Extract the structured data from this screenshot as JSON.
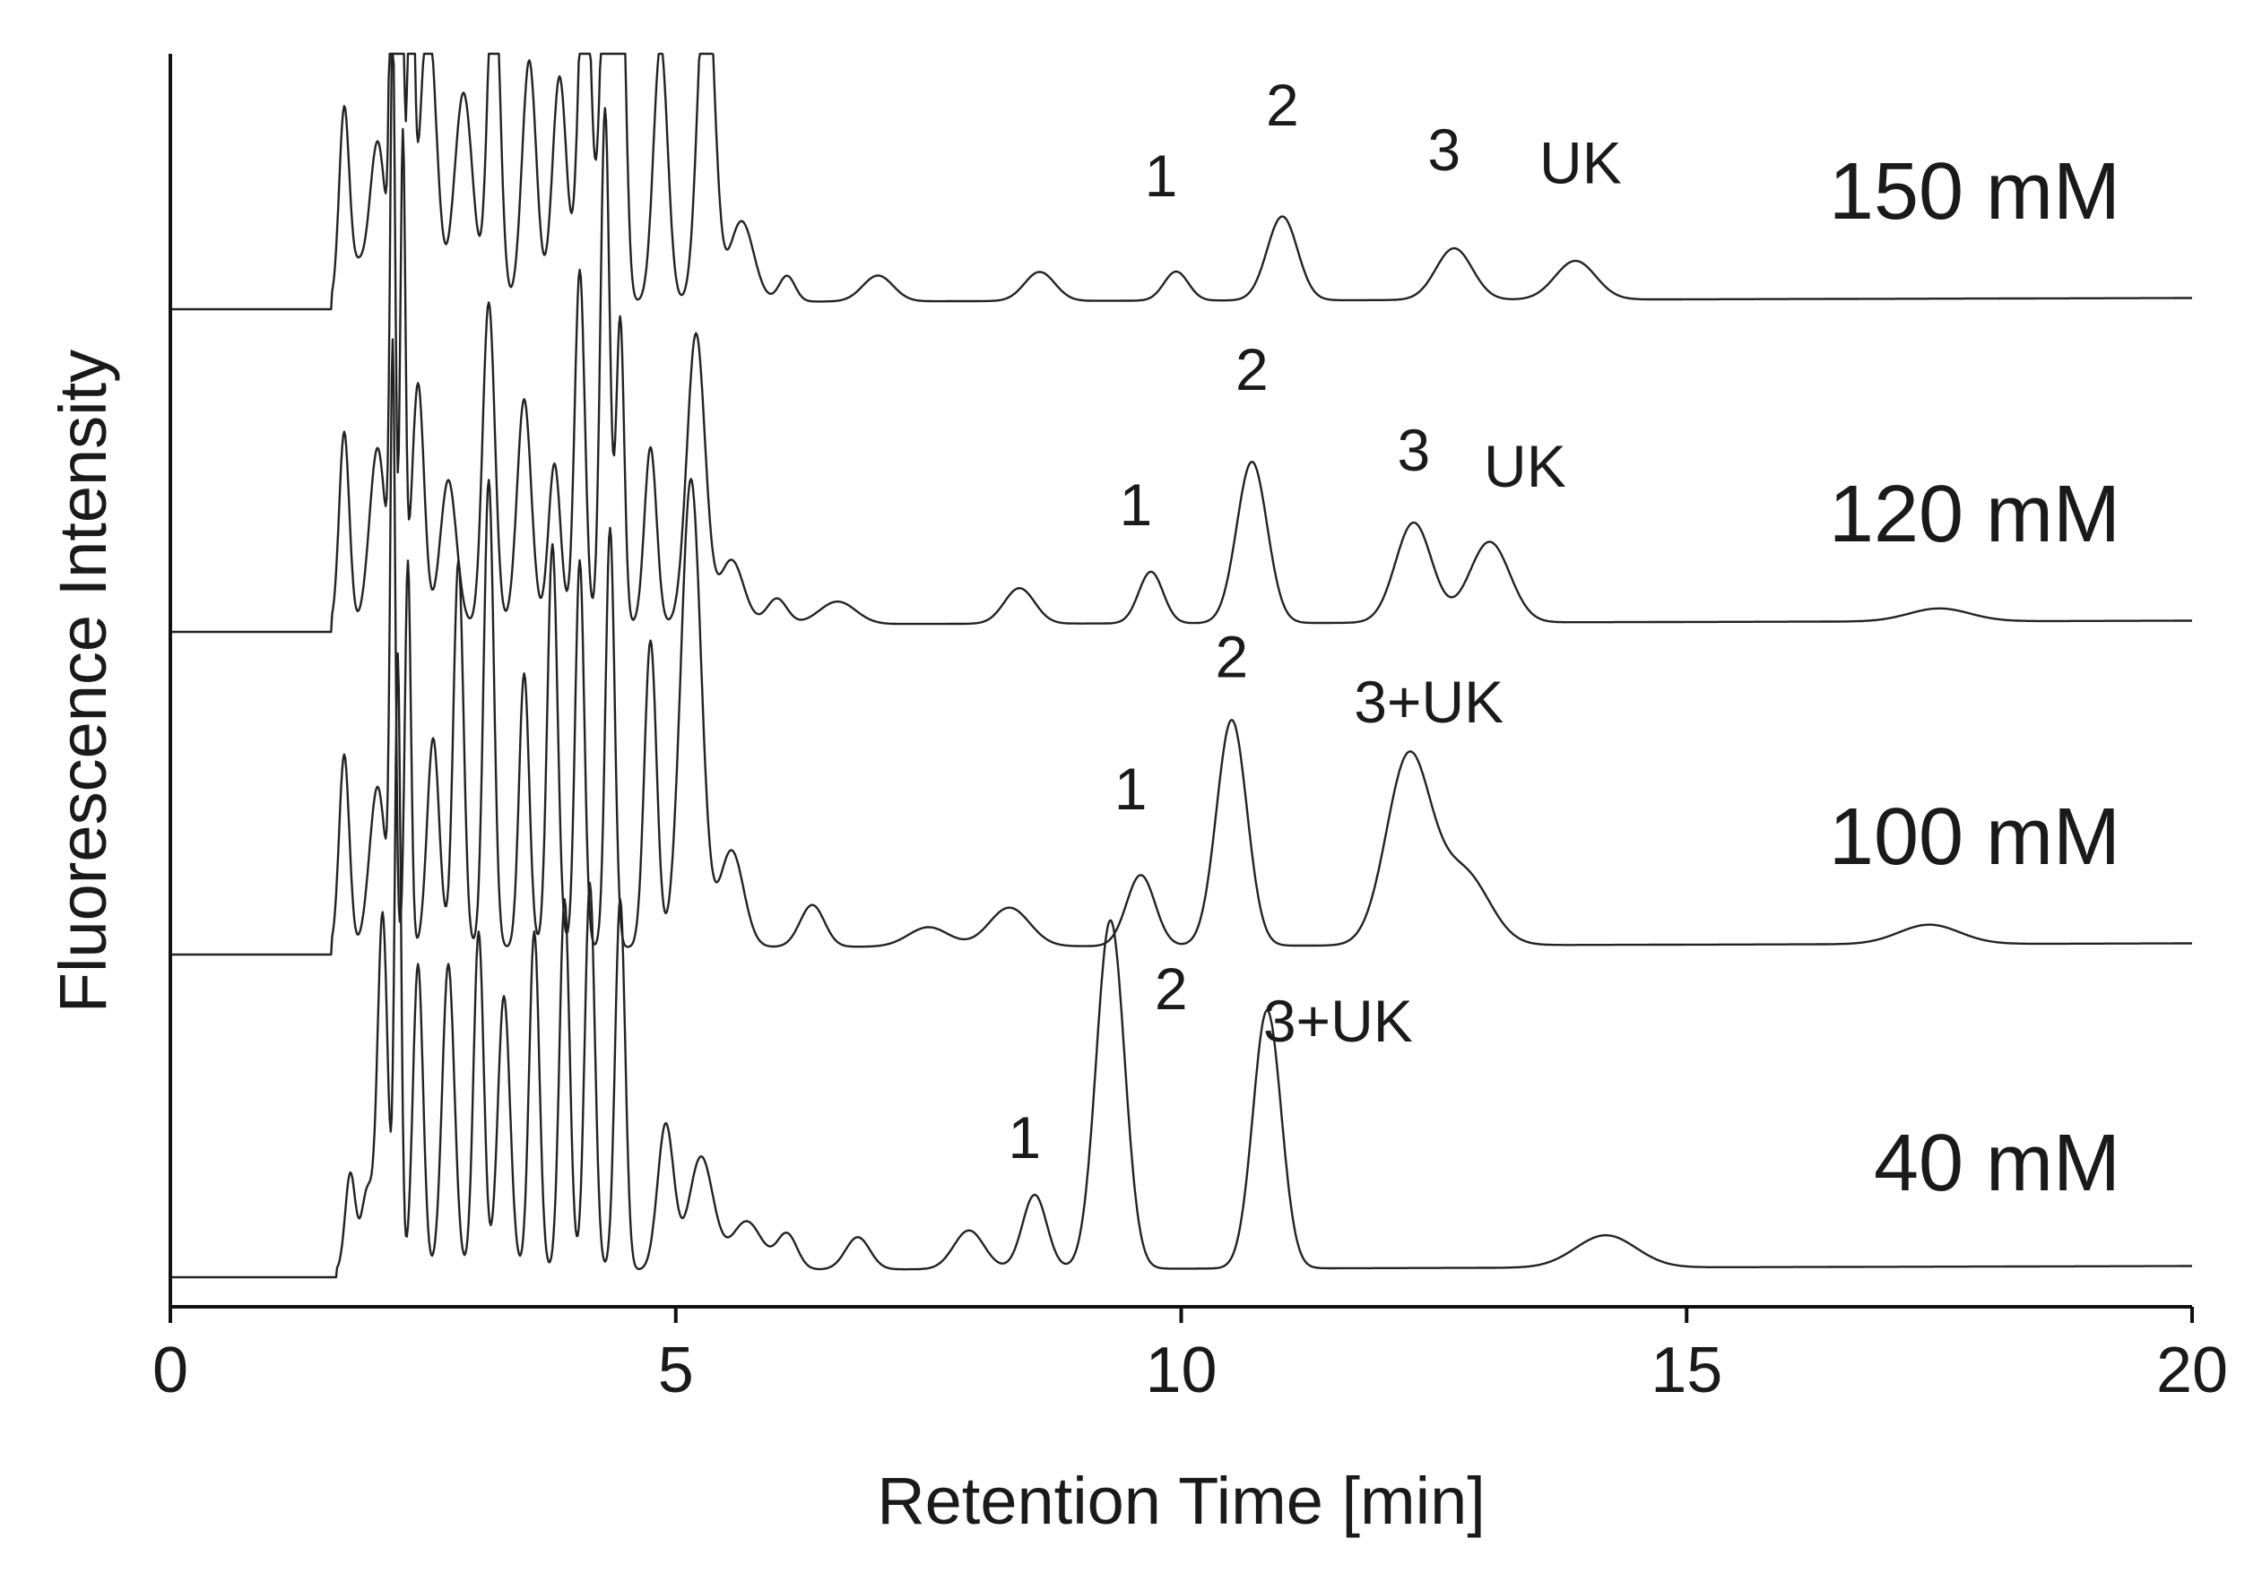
{
  "chart_data": {
    "type": "line",
    "xlabel": "Retention Time [min]",
    "ylabel": "Fluorescence Intensity",
    "xlim": [
      0,
      20
    ],
    "xticks": [
      0,
      5,
      10,
      15,
      20
    ],
    "xtick_labels": [
      "0",
      "5",
      "10",
      "15",
      "20"
    ],
    "grid": false,
    "series": [
      {
        "name": "150 mM",
        "baseline": 1.0,
        "x_start": 1.6,
        "noise_amp": 0.0,
        "drift": 0.004,
        "peaks": [
          {
            "t": 1.72,
            "h": 0.6,
            "w": 0.05
          },
          {
            "t": 1.85,
            "h": 0.1,
            "w": 0.06
          },
          {
            "t": 2.05,
            "h": 0.5,
            "w": 0.08
          },
          {
            "t": 2.2,
            "h": 1.8,
            "w": 0.025
          },
          {
            "t": 2.28,
            "h": 1.6,
            "w": 0.025
          },
          {
            "t": 2.38,
            "h": 1.3,
            "w": 0.03
          },
          {
            "t": 2.55,
            "h": 0.9,
            "w": 0.08
          },
          {
            "t": 2.9,
            "h": 0.65,
            "w": 0.09
          },
          {
            "t": 3.2,
            "h": 1.1,
            "w": 0.06
          },
          {
            "t": 3.55,
            "h": 0.75,
            "w": 0.07
          },
          {
            "t": 3.85,
            "h": 0.7,
            "w": 0.07
          },
          {
            "t": 4.1,
            "h": 1.2,
            "w": 0.06
          },
          {
            "t": 4.3,
            "h": 1.1,
            "w": 0.05
          },
          {
            "t": 4.45,
            "h": 1.3,
            "w": 0.05
          },
          {
            "t": 4.85,
            "h": 0.8,
            "w": 0.07
          },
          {
            "t": 5.3,
            "h": 1.1,
            "w": 0.08
          },
          {
            "t": 5.65,
            "h": 0.25,
            "w": 0.12
          },
          {
            "t": 6.1,
            "h": 0.08,
            "w": 0.08
          },
          {
            "t": 7.0,
            "h": 0.08,
            "w": 0.15
          },
          {
            "t": 8.6,
            "h": 0.09,
            "w": 0.15
          },
          {
            "t": 9.95,
            "h": 0.09,
            "w": 0.12
          },
          {
            "t": 11.0,
            "h": 0.26,
            "w": 0.15
          },
          {
            "t": 12.7,
            "h": 0.16,
            "w": 0.18
          },
          {
            "t": 13.9,
            "h": 0.12,
            "w": 0.2
          }
        ],
        "peak_labels": [
          {
            "text": "1",
            "t": 9.8,
            "y": 1.35
          },
          {
            "text": "2",
            "t": 11.0,
            "y": 1.57
          },
          {
            "text": "3",
            "t": 12.6,
            "y": 1.43
          },
          {
            "text": "UK",
            "t": 13.95,
            "y": 1.39
          }
        ],
        "label_y": 1.28
      },
      {
        "name": "120 mM",
        "baseline": 0.0,
        "x_start": 1.6,
        "noise_amp": 0.0,
        "drift": 0.004,
        "peaks": [
          {
            "t": 1.72,
            "h": 0.6,
            "w": 0.05
          },
          {
            "t": 2.05,
            "h": 0.55,
            "w": 0.08
          },
          {
            "t": 2.2,
            "h": 1.8,
            "w": 0.025
          },
          {
            "t": 2.3,
            "h": 1.5,
            "w": 0.025
          },
          {
            "t": 2.45,
            "h": 0.75,
            "w": 0.06
          },
          {
            "t": 2.75,
            "h": 0.45,
            "w": 0.08
          },
          {
            "t": 3.15,
            "h": 1.0,
            "w": 0.06
          },
          {
            "t": 3.5,
            "h": 0.7,
            "w": 0.07
          },
          {
            "t": 3.8,
            "h": 0.5,
            "w": 0.06
          },
          {
            "t": 4.05,
            "h": 1.1,
            "w": 0.05
          },
          {
            "t": 4.3,
            "h": 1.6,
            "w": 0.045
          },
          {
            "t": 4.45,
            "h": 0.95,
            "w": 0.04
          },
          {
            "t": 4.75,
            "h": 0.55,
            "w": 0.06
          },
          {
            "t": 5.2,
            "h": 0.9,
            "w": 0.09
          },
          {
            "t": 5.55,
            "h": 0.2,
            "w": 0.12
          },
          {
            "t": 6.0,
            "h": 0.08,
            "w": 0.1
          },
          {
            "t": 6.6,
            "h": 0.07,
            "w": 0.18
          },
          {
            "t": 8.4,
            "h": 0.11,
            "w": 0.15
          },
          {
            "t": 9.7,
            "h": 0.16,
            "w": 0.12
          },
          {
            "t": 10.7,
            "h": 0.5,
            "w": 0.15
          },
          {
            "t": 12.3,
            "h": 0.31,
            "w": 0.18
          },
          {
            "t": 13.05,
            "h": 0.25,
            "w": 0.2
          },
          {
            "t": 17.5,
            "h": 0.04,
            "w": 0.3
          }
        ],
        "peak_labels": [
          {
            "text": "1",
            "t": 9.55,
            "y": 0.33
          },
          {
            "text": "2",
            "t": 10.7,
            "y": 0.75
          },
          {
            "text": "3",
            "t": 12.3,
            "y": 0.5
          },
          {
            "text": "UK",
            "t": 13.4,
            "y": 0.45
          }
        ],
        "label_y": 0.28
      },
      {
        "name": "100 mM",
        "baseline": -1.0,
        "x_start": 1.6,
        "noise_amp": 0.0,
        "drift": 0.004,
        "peaks": [
          {
            "t": 1.72,
            "h": 0.6,
            "w": 0.05
          },
          {
            "t": 2.05,
            "h": 0.5,
            "w": 0.08
          },
          {
            "t": 2.2,
            "h": 1.8,
            "w": 0.025
          },
          {
            "t": 2.35,
            "h": 1.2,
            "w": 0.03
          },
          {
            "t": 2.6,
            "h": 0.65,
            "w": 0.06
          },
          {
            "t": 2.85,
            "h": 1.2,
            "w": 0.05
          },
          {
            "t": 3.15,
            "h": 1.45,
            "w": 0.05
          },
          {
            "t": 3.5,
            "h": 0.85,
            "w": 0.05
          },
          {
            "t": 3.78,
            "h": 1.25,
            "w": 0.05
          },
          {
            "t": 4.05,
            "h": 1.2,
            "w": 0.045
          },
          {
            "t": 4.35,
            "h": 1.3,
            "w": 0.045
          },
          {
            "t": 4.75,
            "h": 0.95,
            "w": 0.06
          },
          {
            "t": 5.15,
            "h": 1.45,
            "w": 0.1
          },
          {
            "t": 5.55,
            "h": 0.3,
            "w": 0.12
          },
          {
            "t": 6.35,
            "h": 0.13,
            "w": 0.12
          },
          {
            "t": 7.5,
            "h": 0.06,
            "w": 0.2
          },
          {
            "t": 8.3,
            "h": 0.12,
            "w": 0.2
          },
          {
            "t": 9.6,
            "h": 0.22,
            "w": 0.14
          },
          {
            "t": 10.5,
            "h": 0.7,
            "w": 0.15
          },
          {
            "t": 12.25,
            "h": 0.58,
            "w": 0.22
          },
          {
            "t": 12.8,
            "h": 0.22,
            "w": 0.25
          },
          {
            "t": 17.4,
            "h": 0.06,
            "w": 0.3
          }
        ],
        "peak_labels": [
          {
            "text": "1",
            "t": 9.5,
            "y": -0.55
          },
          {
            "text": "2",
            "t": 10.5,
            "y": -0.14
          },
          {
            "text": "3+UK",
            "t": 12.45,
            "y": -0.28
          }
        ],
        "label_y": -0.72
      },
      {
        "name": "40 mM",
        "baseline": -2.0,
        "x_start": 1.65,
        "noise_amp": 0.0,
        "drift": 0.004,
        "peaks": [
          {
            "t": 1.78,
            "h": 0.3,
            "w": 0.05
          },
          {
            "t": 1.95,
            "h": 0.25,
            "w": 0.06
          },
          {
            "t": 2.1,
            "h": 1.1,
            "w": 0.05
          },
          {
            "t": 2.25,
            "h": 1.9,
            "w": 0.03
          },
          {
            "t": 2.45,
            "h": 0.95,
            "w": 0.05
          },
          {
            "t": 2.75,
            "h": 0.95,
            "w": 0.06
          },
          {
            "t": 3.05,
            "h": 1.05,
            "w": 0.05
          },
          {
            "t": 3.3,
            "h": 0.85,
            "w": 0.06
          },
          {
            "t": 3.6,
            "h": 1.05,
            "w": 0.05
          },
          {
            "t": 3.9,
            "h": 1.15,
            "w": 0.05
          },
          {
            "t": 4.15,
            "h": 1.2,
            "w": 0.05
          },
          {
            "t": 4.45,
            "h": 1.15,
            "w": 0.05
          },
          {
            "t": 4.9,
            "h": 0.45,
            "w": 0.08
          },
          {
            "t": 5.25,
            "h": 0.35,
            "w": 0.12
          },
          {
            "t": 5.7,
            "h": 0.15,
            "w": 0.15
          },
          {
            "t": 6.1,
            "h": 0.11,
            "w": 0.1
          },
          {
            "t": 6.8,
            "h": 0.1,
            "w": 0.12
          },
          {
            "t": 7.9,
            "h": 0.12,
            "w": 0.15
          },
          {
            "t": 8.55,
            "h": 0.23,
            "w": 0.12
          },
          {
            "t": 9.3,
            "h": 1.08,
            "w": 0.14
          },
          {
            "t": 10.85,
            "h": 0.8,
            "w": 0.14
          },
          {
            "t": 14.2,
            "h": 0.1,
            "w": 0.3
          }
        ],
        "peak_labels": [
          {
            "text": "1",
            "t": 8.45,
            "y": -1.63
          },
          {
            "text": "2",
            "t": 9.9,
            "y": -1.17
          },
          {
            "text": "3+UK",
            "t": 11.55,
            "y": -1.27
          }
        ],
        "label_y": -1.73
      }
    ]
  }
}
